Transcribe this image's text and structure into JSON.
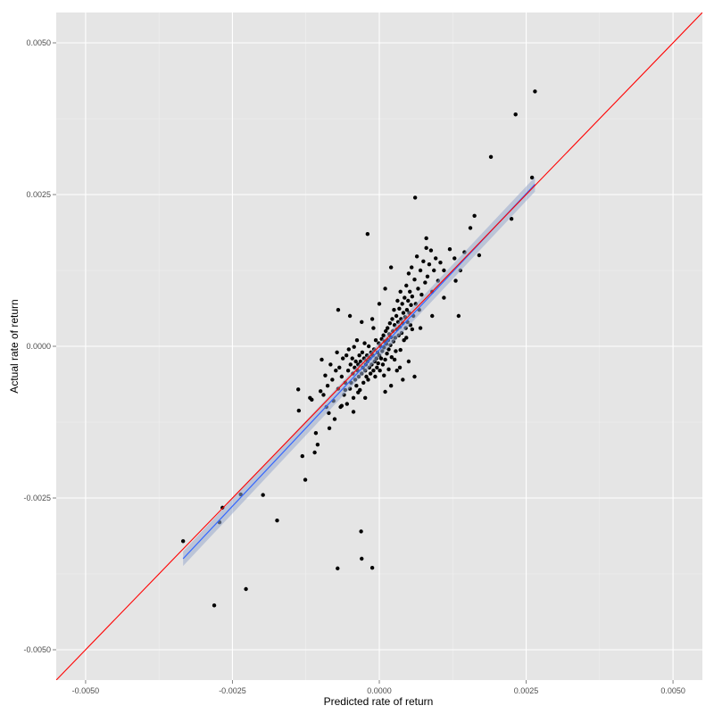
{
  "chart_data": {
    "type": "scatter",
    "title": "",
    "xlabel": "Predicted rate of return",
    "ylabel": "Actual rate of return",
    "xlim": [
      -0.0055,
      0.0055
    ],
    "ylim": [
      -0.0055,
      0.0055
    ],
    "x_ticks": [
      -0.005,
      -0.0025,
      0.0,
      0.0025,
      0.005
    ],
    "x_tick_labels": [
      "-0.0050",
      "-0.0025",
      "0.0000",
      "0.0025",
      "0.0050"
    ],
    "y_ticks": [
      -0.005,
      -0.0025,
      0.0,
      0.0025,
      0.005
    ],
    "y_tick_labels": [
      "-0.0050",
      "-0.0025",
      "0.0000",
      "0.0025",
      "0.0050"
    ],
    "grid": true,
    "background": "#e5e5e5",
    "point_color": "#000000",
    "identity_line": {
      "slope": 1,
      "intercept": 0,
      "color": "#ff0000"
    },
    "regression_line": {
      "x_range": [
        -0.00334,
        0.00265
      ],
      "slope": 1.03,
      "intercept": -6e-05,
      "color": "#3366ff",
      "band_color": "#99aacc"
    },
    "points": [
      [
        -0.00334,
        -0.00321
      ],
      [
        -0.00281,
        -0.00427
      ],
      [
        -0.00272,
        -0.0029
      ],
      [
        -0.00267,
        -0.00266
      ],
      [
        -0.00236,
        -0.00244
      ],
      [
        -0.00227,
        -0.004
      ],
      [
        -0.00198,
        -0.00245
      ],
      [
        -0.00174,
        -0.00287
      ],
      [
        -0.00138,
        -0.00071
      ],
      [
        -0.00137,
        -0.00106
      ],
      [
        -0.00131,
        -0.00181
      ],
      [
        -0.00126,
        -0.0022
      ],
      [
        -0.00118,
        -0.00085
      ],
      [
        -0.00115,
        -0.00088
      ],
      [
        -0.0011,
        -0.00175
      ],
      [
        -0.00108,
        -0.00143
      ],
      [
        -0.00105,
        -0.00162
      ],
      [
        -0.001,
        -0.00074
      ],
      [
        -0.00098,
        -0.00022
      ],
      [
        -0.00095,
        -0.0008
      ],
      [
        -0.00092,
        -0.00048
      ],
      [
        -0.0009,
        -0.001
      ],
      [
        -0.00088,
        -0.00065
      ],
      [
        -0.00085,
        -0.00135
      ],
      [
        -0.00083,
        -0.0003
      ],
      [
        -0.0008,
        -0.00055
      ],
      [
        -0.00078,
        -0.0009
      ],
      [
        -0.00076,
        -0.0012
      ],
      [
        -0.00074,
        -0.0004
      ],
      [
        -0.00072,
        -0.0001
      ],
      [
        -0.00071,
        -0.00366
      ],
      [
        -0.0007,
        -0.0007
      ],
      [
        -0.00068,
        -0.00035
      ],
      [
        -0.00066,
        -0.001
      ],
      [
        -0.00064,
        -0.0005
      ],
      [
        -0.00062,
        -0.0002
      ],
      [
        -0.0006,
        -0.0008
      ],
      [
        -0.00058,
        -0.0006
      ],
      [
        -0.00056,
        -0.00015
      ],
      [
        -0.00055,
        -0.00095
      ],
      [
        -0.00053,
        -0.0004
      ],
      [
        -0.00052,
        -5e-05
      ],
      [
        -0.0005,
        -0.0007
      ],
      [
        -0.00049,
        -0.0003
      ],
      [
        -0.00048,
        -0.0006
      ],
      [
        -0.00046,
        -0.0002
      ],
      [
        -0.00045,
        -0.00045
      ],
      [
        -0.00044,
        -0.00085
      ],
      [
        -0.00043,
        -1e-05
      ],
      [
        -0.00042,
        -0.00035
      ],
      [
        -0.00041,
        -0.00055
      ],
      [
        -0.0004,
        -0.00025
      ],
      [
        -0.00039,
        -0.00065
      ],
      [
        -0.00038,
        0.0001
      ],
      [
        -0.00037,
        -0.0004
      ],
      [
        -0.00036,
        -0.0003
      ],
      [
        -0.00035,
        -0.0005
      ],
      [
        -0.00034,
        -0.00015
      ],
      [
        -0.00033,
        -0.00072
      ],
      [
        -0.00032,
        -0.00025
      ],
      [
        -0.00031,
        -0.00305
      ],
      [
        -0.0003,
        -0.00045
      ],
      [
        -0.0003,
        -0.0035
      ],
      [
        -0.00029,
        -0.0001
      ],
      [
        -0.00028,
        -0.00035
      ],
      [
        -0.00027,
        -0.0006
      ],
      [
        -0.00026,
        -0.0002
      ],
      [
        -0.00025,
        5e-05
      ],
      [
        -0.00024,
        -0.0004
      ],
      [
        -0.00023,
        -0.0003
      ],
      [
        -0.00022,
        -0.0005
      ],
      [
        -0.00021,
        -0.00015
      ],
      [
        -0.0002,
        -0.00025
      ],
      [
        -0.00019,
        -0.00055
      ],
      [
        -0.00018,
        0.0
      ],
      [
        -0.00017,
        -0.00035
      ],
      [
        -0.00016,
        -0.0002
      ],
      [
        -0.00015,
        -0.00045
      ],
      [
        -0.00014,
        -0.0001
      ],
      [
        -0.00013,
        -0.0003
      ],
      [
        -0.00012,
        -0.00365
      ],
      [
        -0.00011,
        -0.00015
      ],
      [
        -0.0001,
        -0.0004
      ],
      [
        -9e-05,
        -5e-05
      ],
      [
        -8e-05,
        -0.00025
      ],
      [
        -7e-05,
        -0.0005
      ],
      [
        -6e-05,
        0.0001
      ],
      [
        -5e-05,
        -0.0002
      ],
      [
        -4e-05,
        -0.00035
      ],
      [
        -3e-05,
        -0.0001
      ],
      [
        -2e-05,
        -0.00028
      ],
      [
        -1e-05,
        5e-05
      ],
      [
        0.0,
        -0.00015
      ],
      [
        1e-05,
        -0.0004
      ],
      [
        2e-05,
        0.0
      ],
      [
        3e-05,
        -0.0002
      ],
      [
        4e-05,
        0.00012
      ],
      [
        5e-05,
        -8e-05
      ],
      [
        6e-05,
        -0.0003
      ],
      [
        7e-05,
        0.00018
      ],
      [
        8e-05,
        -2e-05
      ],
      [
        9e-05,
        8e-05
      ],
      [
        0.0001,
        -0.00022
      ],
      [
        0.00011,
        0.00025
      ],
      [
        0.00012,
        4e-05
      ],
      [
        0.00013,
        -0.00012
      ],
      [
        0.00014,
        0.0003
      ],
      [
        0.00015,
        0.0001
      ],
      [
        0.00016,
        -5e-05
      ],
      [
        0.00017,
        0.0002
      ],
      [
        0.00018,
        0.00038
      ],
      [
        0.00019,
        2e-05
      ],
      [
        0.0002,
        0.00015
      ],
      [
        0.00021,
        -0.00018
      ],
      [
        0.00022,
        0.00045
      ],
      [
        0.00023,
        0.00025
      ],
      [
        0.00024,
        8e-05
      ],
      [
        0.00025,
        0.0006
      ],
      [
        0.00026,
        0.00035
      ],
      [
        0.00027,
        0.00014
      ],
      [
        0.00028,
        -8e-05
      ],
      [
        0.00029,
        0.0005
      ],
      [
        0.0003,
        0.00028
      ],
      [
        0.00031,
        0.00075
      ],
      [
        0.00032,
        0.0004
      ],
      [
        0.00033,
        0.00018
      ],
      [
        0.00034,
        0.00062
      ],
      [
        0.00035,
        0.00032
      ],
      [
        0.00036,
        0.0009
      ],
      [
        0.00037,
        0.00045
      ],
      [
        0.00038,
        0.00022
      ],
      [
        0.00039,
        0.0007
      ],
      [
        0.0004,
        0.00038
      ],
      [
        0.00041,
        0.00055
      ],
      [
        0.00042,
        0.0001
      ],
      [
        0.00043,
        0.0008
      ],
      [
        0.00044,
        0.00048
      ],
      [
        0.00045,
        0.0003
      ],
      [
        0.00046,
        0.001
      ],
      [
        0.00047,
        0.0006
      ],
      [
        0.00048,
        0.0004
      ],
      [
        0.00049,
        0.00075
      ],
      [
        0.0005,
        0.0012
      ],
      [
        0.00051,
        0.00055
      ],
      [
        0.00052,
        0.0009
      ],
      [
        0.00053,
        0.00035
      ],
      [
        0.00054,
        0.00068
      ],
      [
        0.00055,
        0.0013
      ],
      [
        0.00056,
        0.00082
      ],
      [
        0.00058,
        0.0005
      ],
      [
        0.0006,
        0.0011
      ],
      [
        0.00062,
        0.0007
      ],
      [
        0.00064,
        0.00148
      ],
      [
        0.00066,
        0.00095
      ],
      [
        0.00068,
        0.0006
      ],
      [
        0.0007,
        0.00125
      ],
      [
        0.00072,
        0.00085
      ],
      [
        0.00075,
        0.0014
      ],
      [
        0.00078,
        0.00105
      ],
      [
        0.0008,
        0.00162
      ],
      [
        0.00082,
        0.00115
      ],
      [
        0.00085,
        0.00135
      ],
      [
        0.00088,
        0.00158
      ],
      [
        0.0009,
        0.0009
      ],
      [
        0.00093,
        0.00125
      ],
      [
        0.00096,
        0.00145
      ],
      [
        0.001,
        0.00108
      ],
      [
        0.00104,
        0.00138
      ],
      [
        0.0011,
        0.00125
      ],
      [
        0.0012,
        0.0016
      ],
      [
        0.00128,
        0.00145
      ],
      [
        0.0013,
        0.00108
      ],
      [
        0.00135,
        0.0005
      ],
      [
        0.00138,
        0.00125
      ],
      [
        0.00145,
        0.00155
      ],
      [
        0.00155,
        0.00195
      ],
      [
        0.00162,
        0.00215
      ],
      [
        0.0017,
        0.0015
      ],
      [
        0.0019,
        0.00312
      ],
      [
        0.00225,
        0.0021
      ],
      [
        0.00232,
        0.00382
      ],
      [
        0.0026,
        0.00278
      ],
      [
        0.00265,
        0.0042
      ],
      [
        0.00061,
        0.00245
      ],
      [
        -0.0002,
        0.00185
      ],
      [
        0.0008,
        0.00178
      ],
      [
        0.0006,
        -0.0005
      ],
      [
        0.0005,
        -0.00025
      ],
      [
        0.0004,
        -0.00055
      ],
      [
        0.0003,
        -0.0004
      ],
      [
        0.0002,
        -0.00065
      ],
      [
        0.0001,
        -0.00075
      ],
      [
        -0.0001,
        0.0003
      ],
      [
        -0.0003,
        0.0004
      ],
      [
        -0.0005,
        0.0005
      ],
      [
        -0.0007,
        0.0006
      ],
      [
        0.0007,
        0.0003
      ],
      [
        0.0009,
        0.0005
      ],
      [
        0.0011,
        0.0008
      ],
      [
        0.0002,
        0.0013
      ],
      [
        0.0001,
        0.00095
      ],
      [
        0.0,
        0.0007
      ],
      [
        -0.00012,
        0.00045
      ],
      [
        0.00035,
        -0.00035
      ],
      [
        -0.00058,
        -0.00072
      ],
      [
        -0.00064,
        -0.00098
      ],
      [
        -0.00086,
        -0.0011
      ],
      [
        -0.00044,
        -0.00108
      ],
      [
        -0.00024,
        -0.00085
      ],
      [
        8e-05,
        -0.00048
      ],
      [
        0.00016,
        -0.00038
      ],
      [
        -0.00036,
        -0.00076
      ],
      [
        0.00026,
        -0.00022
      ],
      [
        0.00036,
        -6e-05
      ],
      [
        0.00046,
        0.00014
      ],
      [
        0.00056,
        0.00028
      ]
    ]
  }
}
